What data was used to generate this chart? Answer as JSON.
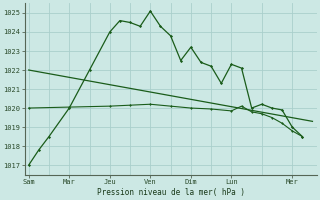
{
  "background_color": "#cce8e4",
  "grid_color": "#aacfcc",
  "line_color": "#1a5c1a",
  "title": "Pression niveau de la mer( hPa )",
  "ylim": [
    1016.5,
    1025.5
  ],
  "yticks": [
    1017,
    1018,
    1019,
    1020,
    1021,
    1022,
    1023,
    1024,
    1025
  ],
  "x_day_labels": [
    "Sam",
    "Mar",
    "Jeu",
    "Ven",
    "Dim",
    "Lun",
    "Mer"
  ],
  "x_day_positions": [
    0,
    2,
    4,
    6,
    8,
    10,
    13
  ],
  "xlim": [
    -0.2,
    14.2
  ],
  "series1_x": [
    0,
    0.5,
    1,
    2,
    3,
    4,
    4.5,
    5,
    5.5,
    6,
    6.5,
    7,
    7.5,
    8,
    8.5,
    9,
    9.5,
    10,
    10.5,
    11,
    11.5,
    12,
    12.5,
    13,
    13.5
  ],
  "series1_y": [
    1017.0,
    1017.8,
    1018.5,
    1020.0,
    1022.0,
    1024.0,
    1024.6,
    1024.5,
    1024.3,
    1025.1,
    1024.3,
    1023.8,
    1022.5,
    1023.2,
    1022.4,
    1022.2,
    1021.3,
    1022.3,
    1022.1,
    1020.0,
    1020.2,
    1020.0,
    1019.9,
    1019.0,
    1018.5
  ],
  "series2_x": [
    0,
    2,
    4,
    5,
    6,
    7,
    8,
    9,
    10,
    10.5,
    11,
    11.5,
    12,
    12.5,
    13,
    13.5
  ],
  "series2_y": [
    1020.0,
    1020.05,
    1020.1,
    1020.15,
    1020.2,
    1020.1,
    1020.0,
    1019.95,
    1019.85,
    1020.1,
    1019.8,
    1019.7,
    1019.5,
    1019.2,
    1018.8,
    1018.5
  ],
  "series3_x": [
    0,
    14.0
  ],
  "series3_y": [
    1022.0,
    1019.3
  ]
}
